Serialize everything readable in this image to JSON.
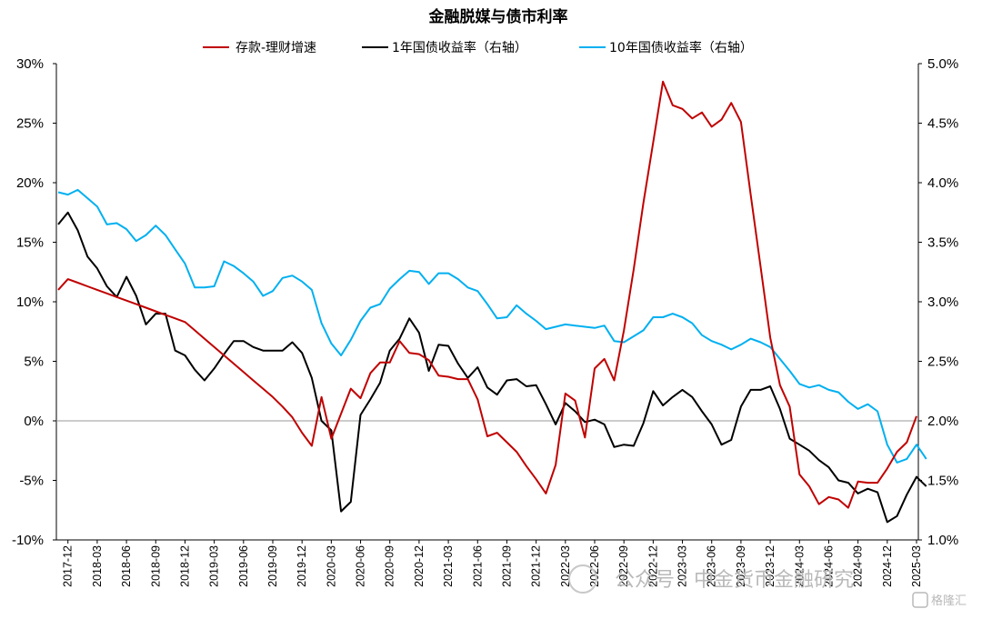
{
  "chart_data": {
    "type": "line",
    "title": "金融脱媒与债市利率",
    "xlabel": "",
    "ylabel": "",
    "y_left": {
      "ticks": [
        "30%",
        "25%",
        "20%",
        "15%",
        "10%",
        "5%",
        "0%",
        "-5%",
        "-10%"
      ],
      "ylim": [
        -10,
        30
      ]
    },
    "y_right": {
      "ticks": [
        "5.0%",
        "4.5%",
        "4.0%",
        "3.5%",
        "3.0%",
        "2.5%",
        "2.0%",
        "1.5%",
        "1.0%"
      ],
      "ylim": [
        1.0,
        5.0
      ]
    },
    "x_start": "2017-11",
    "x_ticks": [
      "2017-12",
      "2018-03",
      "2018-06",
      "2018-09",
      "2018-12",
      "2019-03",
      "2019-06",
      "2019-09",
      "2019-12",
      "2020-03",
      "2020-06",
      "2020-09",
      "2020-12",
      "2021-03",
      "2021-06",
      "2021-09",
      "2021-12",
      "2022-03",
      "2022-06",
      "2022-09",
      "2022-12",
      "2023-03",
      "2023-06",
      "2023-09",
      "2023-12",
      "2024-03",
      "2024-06",
      "2024-09",
      "2024-12",
      "2025-03"
    ],
    "series": [
      {
        "name": "存款-理财增速",
        "axis": "left",
        "color": "#c00000",
        "values": [
          11.0,
          11.9,
          11.6,
          11.3,
          11.0,
          10.7,
          10.4,
          10.1,
          9.8,
          9.5,
          9.2,
          8.9,
          8.6,
          8.3,
          7.6,
          6.9,
          6.2,
          5.5,
          4.8,
          4.1,
          3.4,
          2.7,
          2.0,
          1.2,
          0.3,
          -1.0,
          -2.1,
          2.0,
          -1.5,
          0.6,
          2.7,
          1.9,
          4.0,
          4.9,
          4.9,
          6.7,
          5.7,
          5.6,
          5.1,
          3.8,
          3.7,
          3.5,
          3.5,
          1.8,
          -1.3,
          -1.0,
          -1.8,
          -2.6,
          -3.8,
          -4.9,
          -6.1,
          -3.7,
          2.3,
          1.7,
          -1.4,
          4.4,
          5.2,
          3.4,
          7.6,
          12.7,
          18.3,
          23.4,
          28.5,
          26.5,
          26.2,
          25.4,
          25.9,
          24.7,
          25.3,
          26.7,
          25.1,
          19.0,
          13.0,
          7.0,
          3.0,
          1.2,
          -4.5,
          -5.5,
          -7.0,
          -6.4,
          -6.6,
          -7.3,
          -5.1,
          -5.2,
          -5.2,
          -4.0,
          -2.6,
          -1.8,
          0.4
        ]
      },
      {
        "name": "1年国债收益率（右轴）",
        "axis": "right",
        "color": "#000000",
        "values": [
          3.65,
          3.75,
          3.6,
          3.38,
          3.28,
          3.13,
          3.04,
          3.21,
          3.05,
          2.81,
          2.9,
          2.9,
          2.59,
          2.55,
          2.43,
          2.34,
          2.44,
          2.56,
          2.67,
          2.67,
          2.62,
          2.59,
          2.59,
          2.59,
          2.66,
          2.57,
          2.36,
          2.0,
          1.92,
          1.24,
          1.32,
          2.05,
          2.18,
          2.32,
          2.59,
          2.69,
          2.86,
          2.74,
          2.42,
          2.64,
          2.63,
          2.48,
          2.36,
          2.45,
          2.28,
          2.22,
          2.34,
          2.35,
          2.29,
          2.3,
          2.14,
          1.97,
          2.15,
          2.08,
          1.99,
          2.01,
          1.97,
          1.78,
          1.8,
          1.79,
          1.98,
          2.25,
          2.13,
          2.2,
          2.26,
          2.2,
          2.08,
          1.97,
          1.8,
          1.84,
          2.12,
          2.26,
          2.26,
          2.29,
          2.1,
          1.85,
          1.8,
          1.75,
          1.67,
          1.61,
          1.5,
          1.48,
          1.39,
          1.43,
          1.4,
          1.15,
          1.2,
          1.38,
          1.53,
          1.45
        ]
      },
      {
        "name": "10年国债收益率（右轴）",
        "axis": "right",
        "color": "#00b0f0",
        "values": [
          3.92,
          3.9,
          3.94,
          3.87,
          3.8,
          3.65,
          3.66,
          3.61,
          3.51,
          3.56,
          3.64,
          3.56,
          3.44,
          3.32,
          3.12,
          3.12,
          3.13,
          3.34,
          3.3,
          3.24,
          3.17,
          3.05,
          3.09,
          3.2,
          3.22,
          3.17,
          3.1,
          2.82,
          2.65,
          2.55,
          2.68,
          2.84,
          2.95,
          2.98,
          3.11,
          3.19,
          3.26,
          3.25,
          3.15,
          3.24,
          3.24,
          3.19,
          3.12,
          3.09,
          2.98,
          2.86,
          2.87,
          2.97,
          2.9,
          2.84,
          2.77,
          2.79,
          2.81,
          2.8,
          2.79,
          2.78,
          2.8,
          2.67,
          2.66,
          2.71,
          2.76,
          2.87,
          2.87,
          2.9,
          2.87,
          2.82,
          2.72,
          2.67,
          2.64,
          2.6,
          2.64,
          2.69,
          2.66,
          2.62,
          2.52,
          2.42,
          2.31,
          2.28,
          2.3,
          2.26,
          2.24,
          2.16,
          2.1,
          2.14,
          2.08,
          1.8,
          1.65,
          1.68,
          1.8,
          1.68
        ]
      }
    ]
  },
  "watermark": {
    "text": "公众号 · 中金货币金融研究",
    "badge": "格隆汇"
  }
}
